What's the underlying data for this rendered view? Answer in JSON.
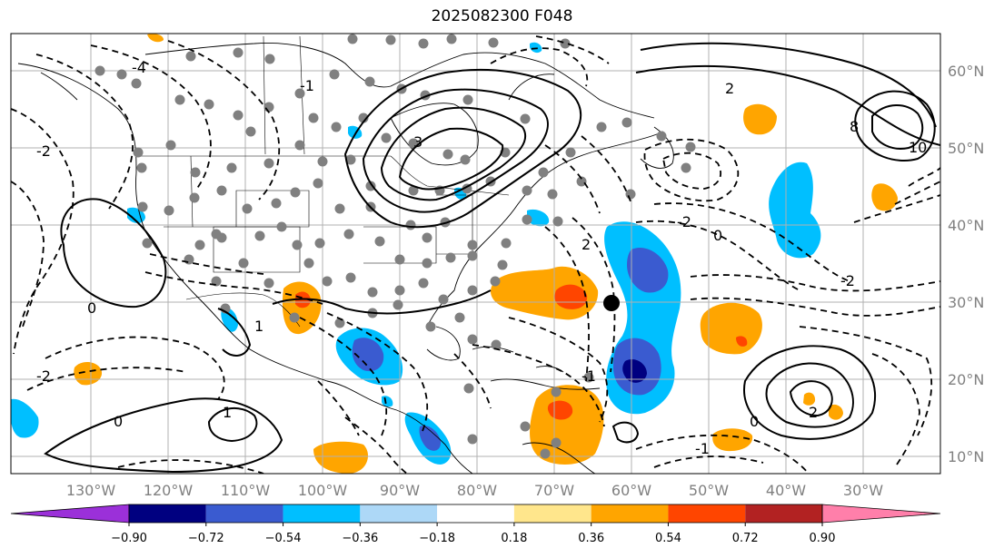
{
  "title": "2025082300 F048",
  "map": {
    "longitude_labels": [
      "130°W",
      "120°W",
      "110°W",
      "100°W",
      "90°W",
      "80°W",
      "70°W",
      "60°W",
      "50°W",
      "40°W",
      "30°W"
    ],
    "latitude_labels": [
      "60°N",
      "50°N",
      "40°N",
      "30°N",
      "20°N",
      "10°N"
    ],
    "contour_labels": [
      "0",
      "-2",
      "-4",
      "2",
      "3",
      "1",
      "-1",
      "8",
      "10",
      "0",
      "-2",
      "2",
      "-1",
      "1",
      "0",
      "-2",
      "-1",
      "0",
      "2",
      "-2"
    ],
    "colors": {
      "purple": "#9b30d9",
      "navy": "#000080",
      "royal": "#3a5bd0",
      "sky": "#00bfff",
      "pale_blue": "#add8f7",
      "white": "#ffffff",
      "pale_yellow": "#ffe68c",
      "orange": "#ffa500",
      "red_orange": "#ff4500",
      "dark_red": "#b22222",
      "pink": "#ff7faa"
    },
    "marker": "black-dot"
  },
  "colorbar": {
    "ticks": [
      "−0.90",
      "−0.72",
      "−0.54",
      "−0.36",
      "−0.18",
      "0.18",
      "0.36",
      "0.54",
      "0.72",
      "0.90"
    ],
    "values": [
      -0.9,
      -0.72,
      -0.54,
      -0.36,
      -0.18,
      0.18,
      0.36,
      0.54,
      0.72,
      0.9
    ],
    "colors": [
      "#9b30d9",
      "#000080",
      "#3a5bd0",
      "#00bfff",
      "#add8f7",
      "#ffffff",
      "#ffe68c",
      "#ffa500",
      "#ff4500",
      "#b22222",
      "#ff7faa"
    ]
  }
}
